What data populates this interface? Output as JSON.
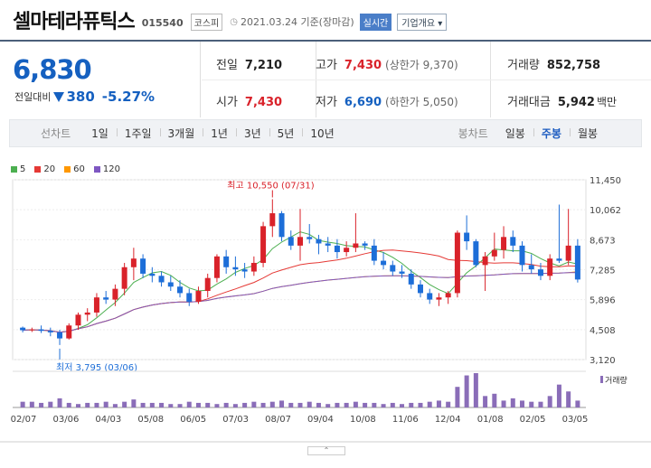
{
  "header": {
    "title": "셀마테라퓨틱스",
    "code": "015540",
    "market_badge": "코스피",
    "date": "2021.03.24 기준(장마감)",
    "realtime_label": "실시간",
    "company_button": "기업개요"
  },
  "price": {
    "current": "6,830",
    "change_label": "전일대비",
    "change_amount": "380",
    "change_percent": "-5.27%",
    "direction": "down"
  },
  "stats": {
    "prev_close": {
      "label": "전일",
      "value": "7,210"
    },
    "high": {
      "label": "고가",
      "value": "7,430",
      "sub": "(상한가 9,370)"
    },
    "volume": {
      "label": "거래량",
      "value": "852,758"
    },
    "open": {
      "label": "시가",
      "value": "7,430"
    },
    "low": {
      "label": "저가",
      "value": "6,690",
      "sub": "(하한가 5,050)"
    },
    "amount": {
      "label": "거래대금",
      "value": "5,942",
      "unit": "백만"
    }
  },
  "tabs": {
    "line_title": "선차트",
    "line_tabs": [
      "1일",
      "1주일",
      "3개월",
      "1년",
      "3년",
      "5년",
      "10년"
    ],
    "candle_title": "봉차트",
    "candle_tabs": [
      "일봉",
      "주봉",
      "월봉"
    ],
    "active_candle": "주봉"
  },
  "legend": [
    {
      "label": "5",
      "color": "#4caf50"
    },
    {
      "label": "20",
      "color": "#e53935"
    },
    {
      "label": "60",
      "color": "#ff9800"
    },
    {
      "label": "120",
      "color": "#7e57c2"
    }
  ],
  "chart_data": {
    "type": "candlestick",
    "y_ticks": [
      "11,450",
      "10,062",
      "8,673",
      "7,285",
      "5,896",
      "4,508",
      "3,120"
    ],
    "ylim": [
      3120,
      11450
    ],
    "x_ticks": [
      "02/07",
      "03/06",
      "04/03",
      "05/08",
      "06/05",
      "07/03",
      "08/07",
      "09/04",
      "10/08",
      "11/06",
      "12/04",
      "01/08",
      "02/05",
      "03/05"
    ],
    "high_annotation": "최고 10,550 (07/31)",
    "low_annotation": "최저 3,795 (03/06)",
    "volume_label": "거래량",
    "candles": [
      [
        4600,
        4650,
        4380,
        4480
      ],
      [
        4480,
        4600,
        4400,
        4520
      ],
      [
        4520,
        4700,
        4350,
        4450
      ],
      [
        4450,
        4600,
        4200,
        4380
      ],
      [
        4380,
        4500,
        3795,
        4100
      ],
      [
        4100,
        4800,
        4050,
        4700
      ],
      [
        4700,
        5300,
        4500,
        5200
      ],
      [
        5200,
        5500,
        4900,
        5300
      ],
      [
        5300,
        6200,
        5100,
        6000
      ],
      [
        6000,
        6300,
        5700,
        5900
      ],
      [
        5900,
        6600,
        5600,
        6400
      ],
      [
        6400,
        7600,
        6100,
        7400
      ],
      [
        7400,
        8300,
        6800,
        7800
      ],
      [
        7800,
        8000,
        6900,
        7100
      ],
      [
        7100,
        7400,
        6700,
        7000
      ],
      [
        7000,
        7200,
        6500,
        6700
      ],
      [
        6700,
        7000,
        6300,
        6500
      ],
      [
        6500,
        6800,
        6000,
        6200
      ],
      [
        6200,
        6400,
        5600,
        5800
      ],
      [
        5800,
        6500,
        5700,
        6300
      ],
      [
        6300,
        7100,
        6000,
        6900
      ],
      [
        6900,
        8000,
        6700,
        7900
      ],
      [
        7900,
        8200,
        7100,
        7400
      ],
      [
        7400,
        7900,
        7000,
        7300
      ],
      [
        7300,
        7600,
        6900,
        7200
      ],
      [
        7200,
        7900,
        7000,
        7600
      ],
      [
        7600,
        9500,
        7400,
        9300
      ],
      [
        9300,
        10550,
        8800,
        9900
      ],
      [
        9900,
        10000,
        8600,
        8800
      ],
      [
        8800,
        9100,
        8200,
        8400
      ],
      [
        8400,
        10100,
        7700,
        8800
      ],
      [
        8800,
        9400,
        8500,
        8700
      ],
      [
        8700,
        8900,
        8000,
        8500
      ],
      [
        8500,
        8800,
        8100,
        8400
      ],
      [
        8400,
        8700,
        7800,
        8100
      ],
      [
        8100,
        8600,
        7900,
        8300
      ],
      [
        8300,
        9900,
        8100,
        8500
      ],
      [
        8500,
        8600,
        8200,
        8400
      ],
      [
        8400,
        8700,
        7500,
        7700
      ],
      [
        7700,
        8100,
        7300,
        7500
      ],
      [
        7500,
        7700,
        7000,
        7200
      ],
      [
        7200,
        7500,
        6900,
        7100
      ],
      [
        7100,
        7300,
        6400,
        6600
      ],
      [
        6600,
        6800,
        6000,
        6200
      ],
      [
        6200,
        6400,
        5700,
        5900
      ],
      [
        5900,
        6200,
        5600,
        6000
      ],
      [
        6000,
        6300,
        5700,
        6200
      ],
      [
        6200,
        9100,
        6000,
        9000
      ],
      [
        9000,
        9800,
        8200,
        8600
      ],
      [
        8600,
        8700,
        7400,
        7500
      ],
      [
        7500,
        8100,
        6300,
        7900
      ],
      [
        7900,
        9000,
        7700,
        8200
      ],
      [
        8200,
        9300,
        7800,
        8800
      ],
      [
        8800,
        9100,
        8100,
        8400
      ],
      [
        8400,
        8600,
        7200,
        7500
      ],
      [
        7500,
        8000,
        7100,
        7300
      ],
      [
        7300,
        7600,
        6800,
        7000
      ],
      [
        7000,
        8000,
        6800,
        7800
      ],
      [
        7800,
        10300,
        7600,
        7700
      ],
      [
        7700,
        10100,
        7500,
        8400
      ],
      [
        8400,
        8700,
        6690,
        6830
      ]
    ],
    "volumes": [
      5,
      5,
      4,
      5,
      8,
      4,
      3,
      4,
      4,
      5,
      3,
      5,
      7,
      4,
      4,
      4,
      3,
      3,
      5,
      4,
      4,
      3,
      4,
      3,
      4,
      5,
      4,
      5,
      6,
      4,
      4,
      5,
      4,
      3,
      4,
      4,
      5,
      4,
      4,
      3,
      4,
      3,
      4,
      4,
      5,
      6,
      5,
      18,
      28,
      30,
      10,
      12,
      6,
      8,
      6,
      5,
      5,
      10,
      20,
      14,
      6
    ],
    "colors": {
      "up": "#d9222a",
      "down": "#1d6ed8",
      "volume": "#8a6db8"
    }
  }
}
